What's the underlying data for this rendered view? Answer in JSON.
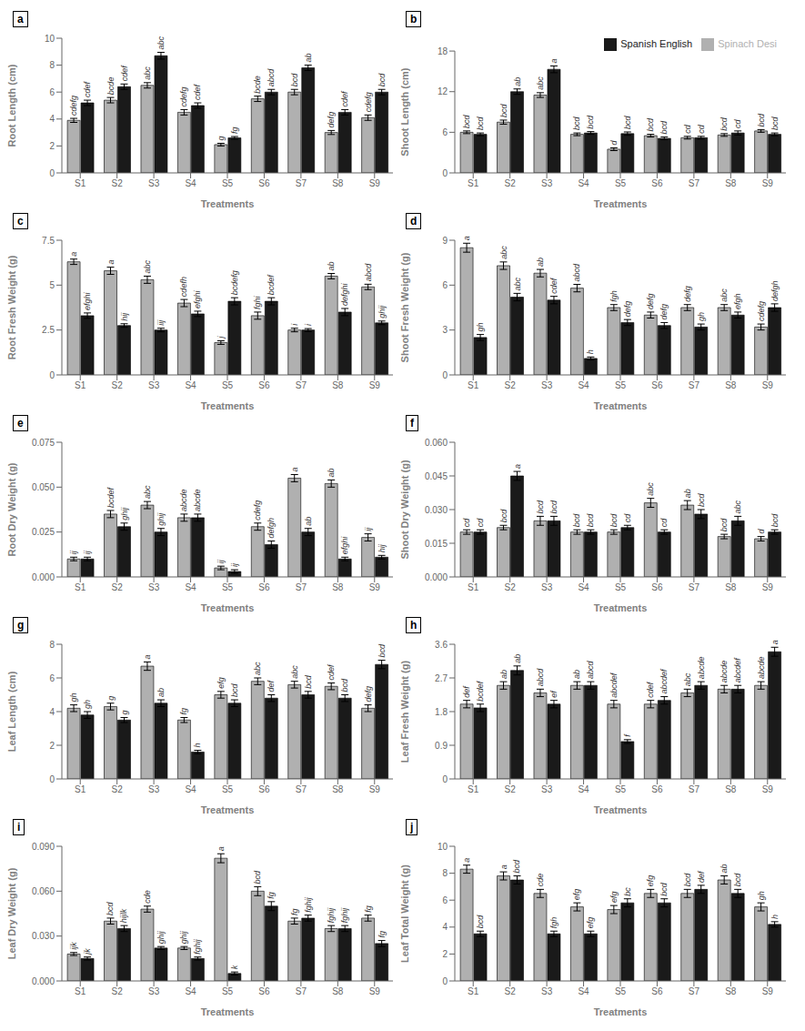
{
  "chart_data": [
    {
      "type": "bar",
      "title": "a",
      "xlabel": "Treatments",
      "ylabel": "Root Length (cm)",
      "categories": [
        "S1",
        "S2",
        "S3",
        "S4",
        "S5",
        "S6",
        "S7",
        "S8",
        "S9"
      ],
      "ylim": [
        0,
        10
      ],
      "yticks": [
        0,
        2,
        4,
        6,
        8,
        10
      ],
      "series": [
        {
          "name": "Spinach Desi",
          "color": "#b0b0b0",
          "values": [
            3.9,
            5.4,
            6.5,
            4.5,
            2.1,
            5.5,
            6.0,
            3.0,
            4.1
          ],
          "errors": [
            0.15,
            0.2,
            0.2,
            0.2,
            0.1,
            0.2,
            0.2,
            0.15,
            0.2
          ],
          "labels": [
            "cdefg",
            "bcde",
            "abc",
            "cdefg",
            "g",
            "bcde",
            "bcd",
            "defg",
            "cdefg"
          ]
        },
        {
          "name": "Spanish English",
          "color": "#1a1a1a",
          "values": [
            5.2,
            6.4,
            8.7,
            5.0,
            2.6,
            6.0,
            7.8,
            4.5,
            6.0
          ],
          "errors": [
            0.2,
            0.2,
            0.25,
            0.2,
            0.1,
            0.2,
            0.2,
            0.2,
            0.2
          ],
          "labels": [
            "cdef",
            "cdef",
            "abc",
            "cdef",
            "fg",
            "abcd",
            "ab",
            "cdef",
            "bcd"
          ]
        }
      ]
    },
    {
      "type": "bar",
      "title": "b",
      "xlabel": "Treatments",
      "ylabel": "Shoot Length (cm)",
      "categories": [
        "S1",
        "S2",
        "S3",
        "S4",
        "S5",
        "S6",
        "S7",
        "S8",
        "S9"
      ],
      "ylim": [
        0,
        18
      ],
      "yticks": [
        0,
        6,
        12,
        18
      ],
      "legend": "upper right",
      "series": [
        {
          "name": "Spinach Desi",
          "color": "#b0b0b0",
          "values": [
            6.0,
            7.5,
            11.5,
            5.7,
            3.5,
            5.5,
            5.2,
            5.6,
            6.2
          ],
          "errors": [
            0.2,
            0.3,
            0.35,
            0.2,
            0.2,
            0.2,
            0.2,
            0.2,
            0.2
          ],
          "labels": [
            "bcd",
            "bcd",
            "abc",
            "bcd",
            "d",
            "bcd",
            "cd",
            "bcd",
            "bcd"
          ]
        },
        {
          "name": "Spanish English",
          "color": "#1a1a1a",
          "values": [
            5.7,
            12.0,
            15.3,
            5.9,
            5.8,
            5.1,
            5.2,
            5.9,
            5.7
          ],
          "errors": [
            0.2,
            0.4,
            0.5,
            0.2,
            0.25,
            0.2,
            0.2,
            0.3,
            0.2
          ],
          "labels": [
            "bcd",
            "ab",
            "a",
            "bcd",
            "bcd",
            "bcd",
            "cd",
            "cd",
            "bcd"
          ]
        }
      ]
    },
    {
      "type": "bar",
      "title": "c",
      "xlabel": "Treatments",
      "ylabel": "Root Fresh Weight (g)",
      "categories": [
        "S1",
        "S2",
        "S3",
        "S4",
        "S5",
        "S6",
        "S7",
        "S8",
        "S9"
      ],
      "ylim": [
        0,
        7.5
      ],
      "yticks": [
        0,
        2.5,
        5,
        7.5
      ],
      "series": [
        {
          "name": "Spinach Desi",
          "color": "#b0b0b0",
          "values": [
            6.3,
            5.8,
            5.3,
            4.0,
            1.8,
            3.3,
            2.5,
            5.5,
            4.9
          ],
          "errors": [
            0.15,
            0.2,
            0.2,
            0.2,
            0.1,
            0.2,
            0.1,
            0.15,
            0.15
          ],
          "labels": [
            "a",
            "a",
            "abc",
            "cdefh",
            "j",
            "fghi",
            "i",
            "ab",
            "abcd"
          ]
        },
        {
          "name": "Spanish English",
          "color": "#1a1a1a",
          "values": [
            3.3,
            2.75,
            2.5,
            3.4,
            4.1,
            4.1,
            2.5,
            3.5,
            2.9
          ],
          "errors": [
            0.15,
            0.1,
            0.1,
            0.15,
            0.2,
            0.2,
            0.08,
            0.2,
            0.1
          ],
          "labels": [
            "efghi",
            "hij",
            "iij",
            "efghi",
            "bcdefg",
            "bcdef",
            "i",
            "defghi",
            "ghij"
          ]
        }
      ]
    },
    {
      "type": "bar",
      "title": "d",
      "xlabel": "Treatments",
      "ylabel": "Shoot Fresh Weight (g)",
      "categories": [
        "S1",
        "S2",
        "S3",
        "S4",
        "S5",
        "S6",
        "S7",
        "S8",
        "S9"
      ],
      "ylim": [
        0,
        9
      ],
      "yticks": [
        0,
        3,
        6,
        9
      ],
      "series": [
        {
          "name": "Spinach Desi",
          "color": "#b0b0b0",
          "values": [
            8.5,
            7.3,
            6.8,
            5.8,
            4.5,
            4.0,
            4.5,
            4.5,
            3.2
          ],
          "errors": [
            0.3,
            0.25,
            0.25,
            0.25,
            0.2,
            0.2,
            0.2,
            0.2,
            0.2
          ],
          "labels": [
            "a",
            "abc",
            "ab",
            "abcd",
            "fgh",
            "defg",
            "defg",
            "abc",
            "cdefg"
          ]
        },
        {
          "name": "Spanish English",
          "color": "#1a1a1a",
          "values": [
            2.5,
            5.2,
            5.0,
            1.1,
            3.5,
            3.3,
            3.2,
            4.0,
            4.5
          ],
          "errors": [
            0.2,
            0.25,
            0.25,
            0.1,
            0.2,
            0.2,
            0.2,
            0.2,
            0.25
          ],
          "labels": [
            "gh",
            "abc",
            "cdef",
            "h",
            "defg",
            "defg",
            "gh",
            "efgh",
            "defgh"
          ]
        }
      ]
    },
    {
      "type": "bar",
      "title": "e",
      "xlabel": "Treatments",
      "ylabel": "Root Dry Weight (g)",
      "categories": [
        "S1",
        "S2",
        "S3",
        "S4",
        "S5",
        "S6",
        "S7",
        "S8",
        "S9"
      ],
      "ylim": [
        0,
        0.075
      ],
      "yticks": [
        {
          "value": 0,
          "label": "0.000"
        },
        0.025,
        {
          "value": 0.05,
          "label": "0.050"
        },
        0.075
      ],
      "series": [
        {
          "name": "Spinach Desi",
          "color": "#b0b0b0",
          "values": [
            0.01,
            0.035,
            0.04,
            0.033,
            0.005,
            0.028,
            0.055,
            0.052,
            0.022
          ],
          "errors": [
            0.001,
            0.002,
            0.002,
            0.002,
            0.001,
            0.002,
            0.002,
            0.002,
            0.002
          ],
          "labels": [
            "ij",
            "bcdef",
            "abc",
            "abcde",
            "ij",
            "cdefg",
            "a",
            "ab",
            "ij"
          ]
        },
        {
          "name": "Spanish English",
          "color": "#1a1a1a",
          "values": [
            0.01,
            0.028,
            0.025,
            0.033,
            0.003,
            0.018,
            0.025,
            0.01,
            0.011
          ],
          "errors": [
            0.001,
            0.002,
            0.002,
            0.002,
            0.001,
            0.002,
            0.002,
            0.001,
            0.001
          ],
          "labels": [
            "ij",
            "ghij",
            "ghij",
            "abcde",
            "ij",
            "defgh",
            "ab",
            "efghi",
            "hij"
          ]
        }
      ]
    },
    {
      "type": "bar",
      "title": "f",
      "xlabel": "Treatments",
      "ylabel": "Shoot Dry Weight (g)",
      "categories": [
        "S1",
        "S2",
        "S3",
        "S4",
        "S5",
        "S6",
        "S7",
        "S8",
        "S9"
      ],
      "ylim": [
        0,
        0.06
      ],
      "yticks": [
        {
          "value": 0,
          "label": "0.000"
        },
        0.015,
        {
          "value": 0.03,
          "label": "0.030"
        },
        0.045,
        {
          "value": 0.06,
          "label": "0.060"
        }
      ],
      "series": [
        {
          "name": "Spinach Desi",
          "color": "#b0b0b0",
          "values": [
            0.02,
            0.022,
            0.025,
            0.02,
            0.02,
            0.033,
            0.032,
            0.018,
            0.017
          ],
          "errors": [
            0.001,
            0.001,
            0.002,
            0.001,
            0.001,
            0.002,
            0.002,
            0.001,
            0.001
          ],
          "labels": [
            "cd",
            "bcd",
            "bcd",
            "bcd",
            "bcd",
            "abc",
            "ab",
            "bcd",
            "d"
          ]
        },
        {
          "name": "Spanish English",
          "color": "#1a1a1a",
          "values": [
            0.02,
            0.045,
            0.025,
            0.02,
            0.022,
            0.02,
            0.028,
            0.025,
            0.02
          ],
          "errors": [
            0.001,
            0.002,
            0.002,
            0.001,
            0.001,
            0.001,
            0.002,
            0.002,
            0.001
          ],
          "labels": [
            "cd",
            "a",
            "bcd",
            "bcd",
            "cd",
            "cd",
            "bcd",
            "abc",
            "bcd"
          ]
        }
      ]
    },
    {
      "type": "bar",
      "title": "g",
      "xlabel": "Treatments",
      "ylabel": "Leaf Length (cm)",
      "categories": [
        "S1",
        "S2",
        "S3",
        "S4",
        "S5",
        "S6",
        "S7",
        "S8",
        "S9"
      ],
      "ylim": [
        0,
        8
      ],
      "yticks": [
        0,
        2,
        4,
        6,
        8
      ],
      "series": [
        {
          "name": "Spinach Desi",
          "color": "#b0b0b0",
          "values": [
            4.2,
            4.3,
            6.7,
            3.5,
            5.0,
            5.8,
            5.6,
            5.5,
            4.2
          ],
          "errors": [
            0.2,
            0.2,
            0.25,
            0.15,
            0.2,
            0.2,
            0.2,
            0.2,
            0.2
          ],
          "labels": [
            "gh",
            "g",
            "a",
            "fg",
            "efg",
            "abc",
            "abc",
            "cdef",
            "defg"
          ]
        },
        {
          "name": "Spanish English",
          "color": "#1a1a1a",
          "values": [
            3.8,
            3.5,
            4.5,
            1.6,
            4.5,
            4.8,
            5.0,
            4.8,
            6.8
          ],
          "errors": [
            0.2,
            0.15,
            0.2,
            0.1,
            0.2,
            0.2,
            0.2,
            0.2,
            0.25
          ],
          "labels": [
            "gh",
            "g",
            "ab",
            "h",
            "bcd",
            "def",
            "bcd",
            "bcd",
            "bcd"
          ]
        }
      ]
    },
    {
      "type": "bar",
      "title": "h",
      "xlabel": "Treatments",
      "ylabel": "Leaf Fresh Weight (g)",
      "categories": [
        "S1",
        "S2",
        "S3",
        "S4",
        "S5",
        "S6",
        "S7",
        "S8",
        "S9"
      ],
      "ylim": [
        0,
        3.6
      ],
      "yticks": [
        0,
        0.9,
        1.8,
        2.7,
        3.6
      ],
      "series": [
        {
          "name": "Spinach Desi",
          "color": "#b0b0b0",
          "values": [
            2.0,
            2.5,
            2.3,
            2.5,
            2.0,
            2.0,
            2.3,
            2.4,
            2.5
          ],
          "errors": [
            0.1,
            0.1,
            0.1,
            0.1,
            0.1,
            0.1,
            0.1,
            0.1,
            0.1
          ],
          "labels": [
            "def",
            "ab",
            "abcd",
            "ab",
            "abcdef",
            "cdef",
            "abc",
            "abcde",
            "abcde"
          ]
        },
        {
          "name": "Spanish English",
          "color": "#1a1a1a",
          "values": [
            1.9,
            2.9,
            2.0,
            2.5,
            1.0,
            2.1,
            2.5,
            2.4,
            3.4
          ],
          "errors": [
            0.1,
            0.12,
            0.1,
            0.1,
            0.05,
            0.1,
            0.1,
            0.1,
            0.12
          ],
          "labels": [
            "bcdef",
            "ab",
            "ef",
            "abcd",
            "f",
            "abcdef",
            "abcde",
            "abcdef",
            "a"
          ]
        }
      ]
    },
    {
      "type": "bar",
      "title": "i",
      "xlabel": "Treatments",
      "ylabel": "Leaf Dry Weight (g)",
      "categories": [
        "S1",
        "S2",
        "S3",
        "S4",
        "S5",
        "S6",
        "S7",
        "S8",
        "S9"
      ],
      "ylim": [
        0,
        0.09
      ],
      "yticks": [
        {
          "value": 0,
          "label": "0.000"
        },
        {
          "value": 0.03,
          "label": "0.030"
        },
        {
          "value": 0.06,
          "label": "0.060"
        },
        {
          "value": 0.09,
          "label": "0.090"
        }
      ],
      "series": [
        {
          "name": "Spinach Desi",
          "color": "#b0b0b0",
          "values": [
            0.018,
            0.04,
            0.048,
            0.022,
            0.082,
            0.06,
            0.04,
            0.035,
            0.042
          ],
          "errors": [
            0.001,
            0.002,
            0.002,
            0.001,
            0.003,
            0.003,
            0.002,
            0.002,
            0.002
          ],
          "labels": [
            "ijk",
            "bcd",
            "cde",
            "ghij",
            "a",
            "bcd",
            "fg",
            "fghij",
            "fg"
          ]
        },
        {
          "name": "Spanish English",
          "color": "#1a1a1a",
          "values": [
            0.015,
            0.035,
            0.022,
            0.015,
            0.005,
            0.05,
            0.042,
            0.035,
            0.025
          ],
          "errors": [
            0.001,
            0.002,
            0.001,
            0.001,
            0.001,
            0.003,
            0.002,
            0.002,
            0.002
          ],
          "labels": [
            "jk",
            "hijlk",
            "ghij",
            "fghij",
            "k",
            "fg",
            "fghij",
            "fghij",
            "fg"
          ]
        }
      ]
    },
    {
      "type": "bar",
      "title": "j",
      "xlabel": "Treatments",
      "ylabel": "Leaf Total Weight (g)",
      "categories": [
        "S1",
        "S2",
        "S3",
        "S4",
        "S5",
        "S6",
        "S7",
        "S8",
        "S9"
      ],
      "ylim": [
        0,
        10
      ],
      "yticks": [
        0,
        2,
        4,
        6,
        8,
        10
      ],
      "series": [
        {
          "name": "Spinach Desi",
          "color": "#b0b0b0",
          "values": [
            8.3,
            7.8,
            6.5,
            5.5,
            5.3,
            6.5,
            6.5,
            7.5,
            5.5
          ],
          "errors": [
            0.3,
            0.3,
            0.3,
            0.3,
            0.3,
            0.3,
            0.3,
            0.3,
            0.3
          ],
          "labels": [
            "a",
            "a",
            "cde",
            "efg",
            "efg",
            "efg",
            "bcd",
            "ab",
            "gh"
          ]
        },
        {
          "name": "Spanish English",
          "color": "#1a1a1a",
          "values": [
            3.5,
            7.5,
            3.5,
            3.5,
            5.8,
            5.8,
            6.8,
            6.5,
            4.2
          ],
          "errors": [
            0.2,
            0.3,
            0.2,
            0.2,
            0.3,
            0.3,
            0.3,
            0.3,
            0.2
          ],
          "labels": [
            "bcd",
            "bcd",
            "fgh",
            "efg",
            "bc",
            "bcd",
            "def",
            "bcd",
            "h"
          ]
        }
      ]
    }
  ]
}
